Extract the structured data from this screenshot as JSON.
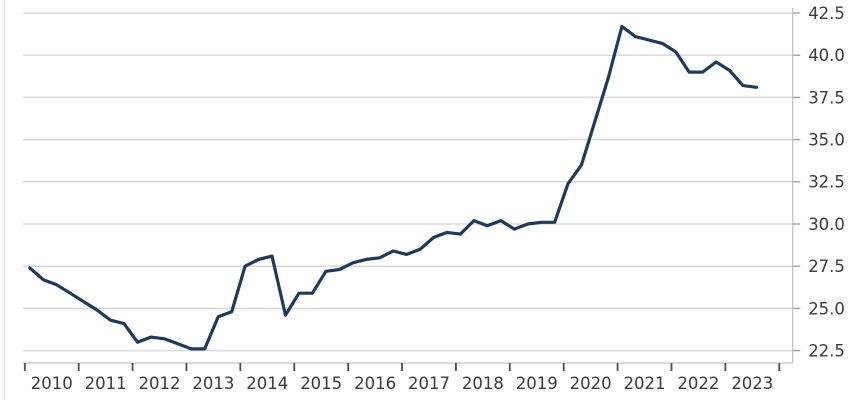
{
  "chart_data": {
    "type": "line",
    "title": "",
    "x_start_year": 2010,
    "points_per_year": 4,
    "x_tick_labels": [
      "2010",
      "2011",
      "2012",
      "2013",
      "2014",
      "2015",
      "2016",
      "2017",
      "2018",
      "2019",
      "2020",
      "2021",
      "2022",
      "2023"
    ],
    "y_tick_labels": [
      "22.5",
      "25.0",
      "27.5",
      "30.0",
      "32.5",
      "35.0",
      "37.5",
      "40.0",
      "42.5"
    ],
    "y_ticks": [
      22.5,
      25.0,
      27.5,
      30.0,
      32.5,
      35.0,
      37.5,
      40.0,
      42.5
    ],
    "ylim": [
      22.5,
      42.5
    ],
    "grid": "horizontal",
    "legend": "none",
    "y_axis_position": "right",
    "line_color": "#1d3a5e",
    "grid_color": "#dcdcdc",
    "axis_color": "#c4c4c4",
    "x_tick_color": "#4d4d4d",
    "y_tick_color": "#9e9e9e",
    "text_color": "#3b3b3b",
    "series": [
      {
        "name": "value",
        "values": [
          27.4,
          26.7,
          26.4,
          25.9,
          25.4,
          24.9,
          24.3,
          24.1,
          23.0,
          23.3,
          23.2,
          22.9,
          22.6,
          22.6,
          24.5,
          24.8,
          27.5,
          27.9,
          28.1,
          24.6,
          25.9,
          25.9,
          27.2,
          27.3,
          27.7,
          27.9,
          28.0,
          28.4,
          28.2,
          28.5,
          29.2,
          29.5,
          29.4,
          30.2,
          29.9,
          30.2,
          29.7,
          30.0,
          30.1,
          30.1,
          32.4,
          33.5,
          36.1,
          38.7,
          41.7,
          41.1,
          40.9,
          40.7,
          40.2,
          39.0,
          39.0,
          39.6,
          39.1,
          38.2,
          38.1
        ]
      }
    ]
  }
}
